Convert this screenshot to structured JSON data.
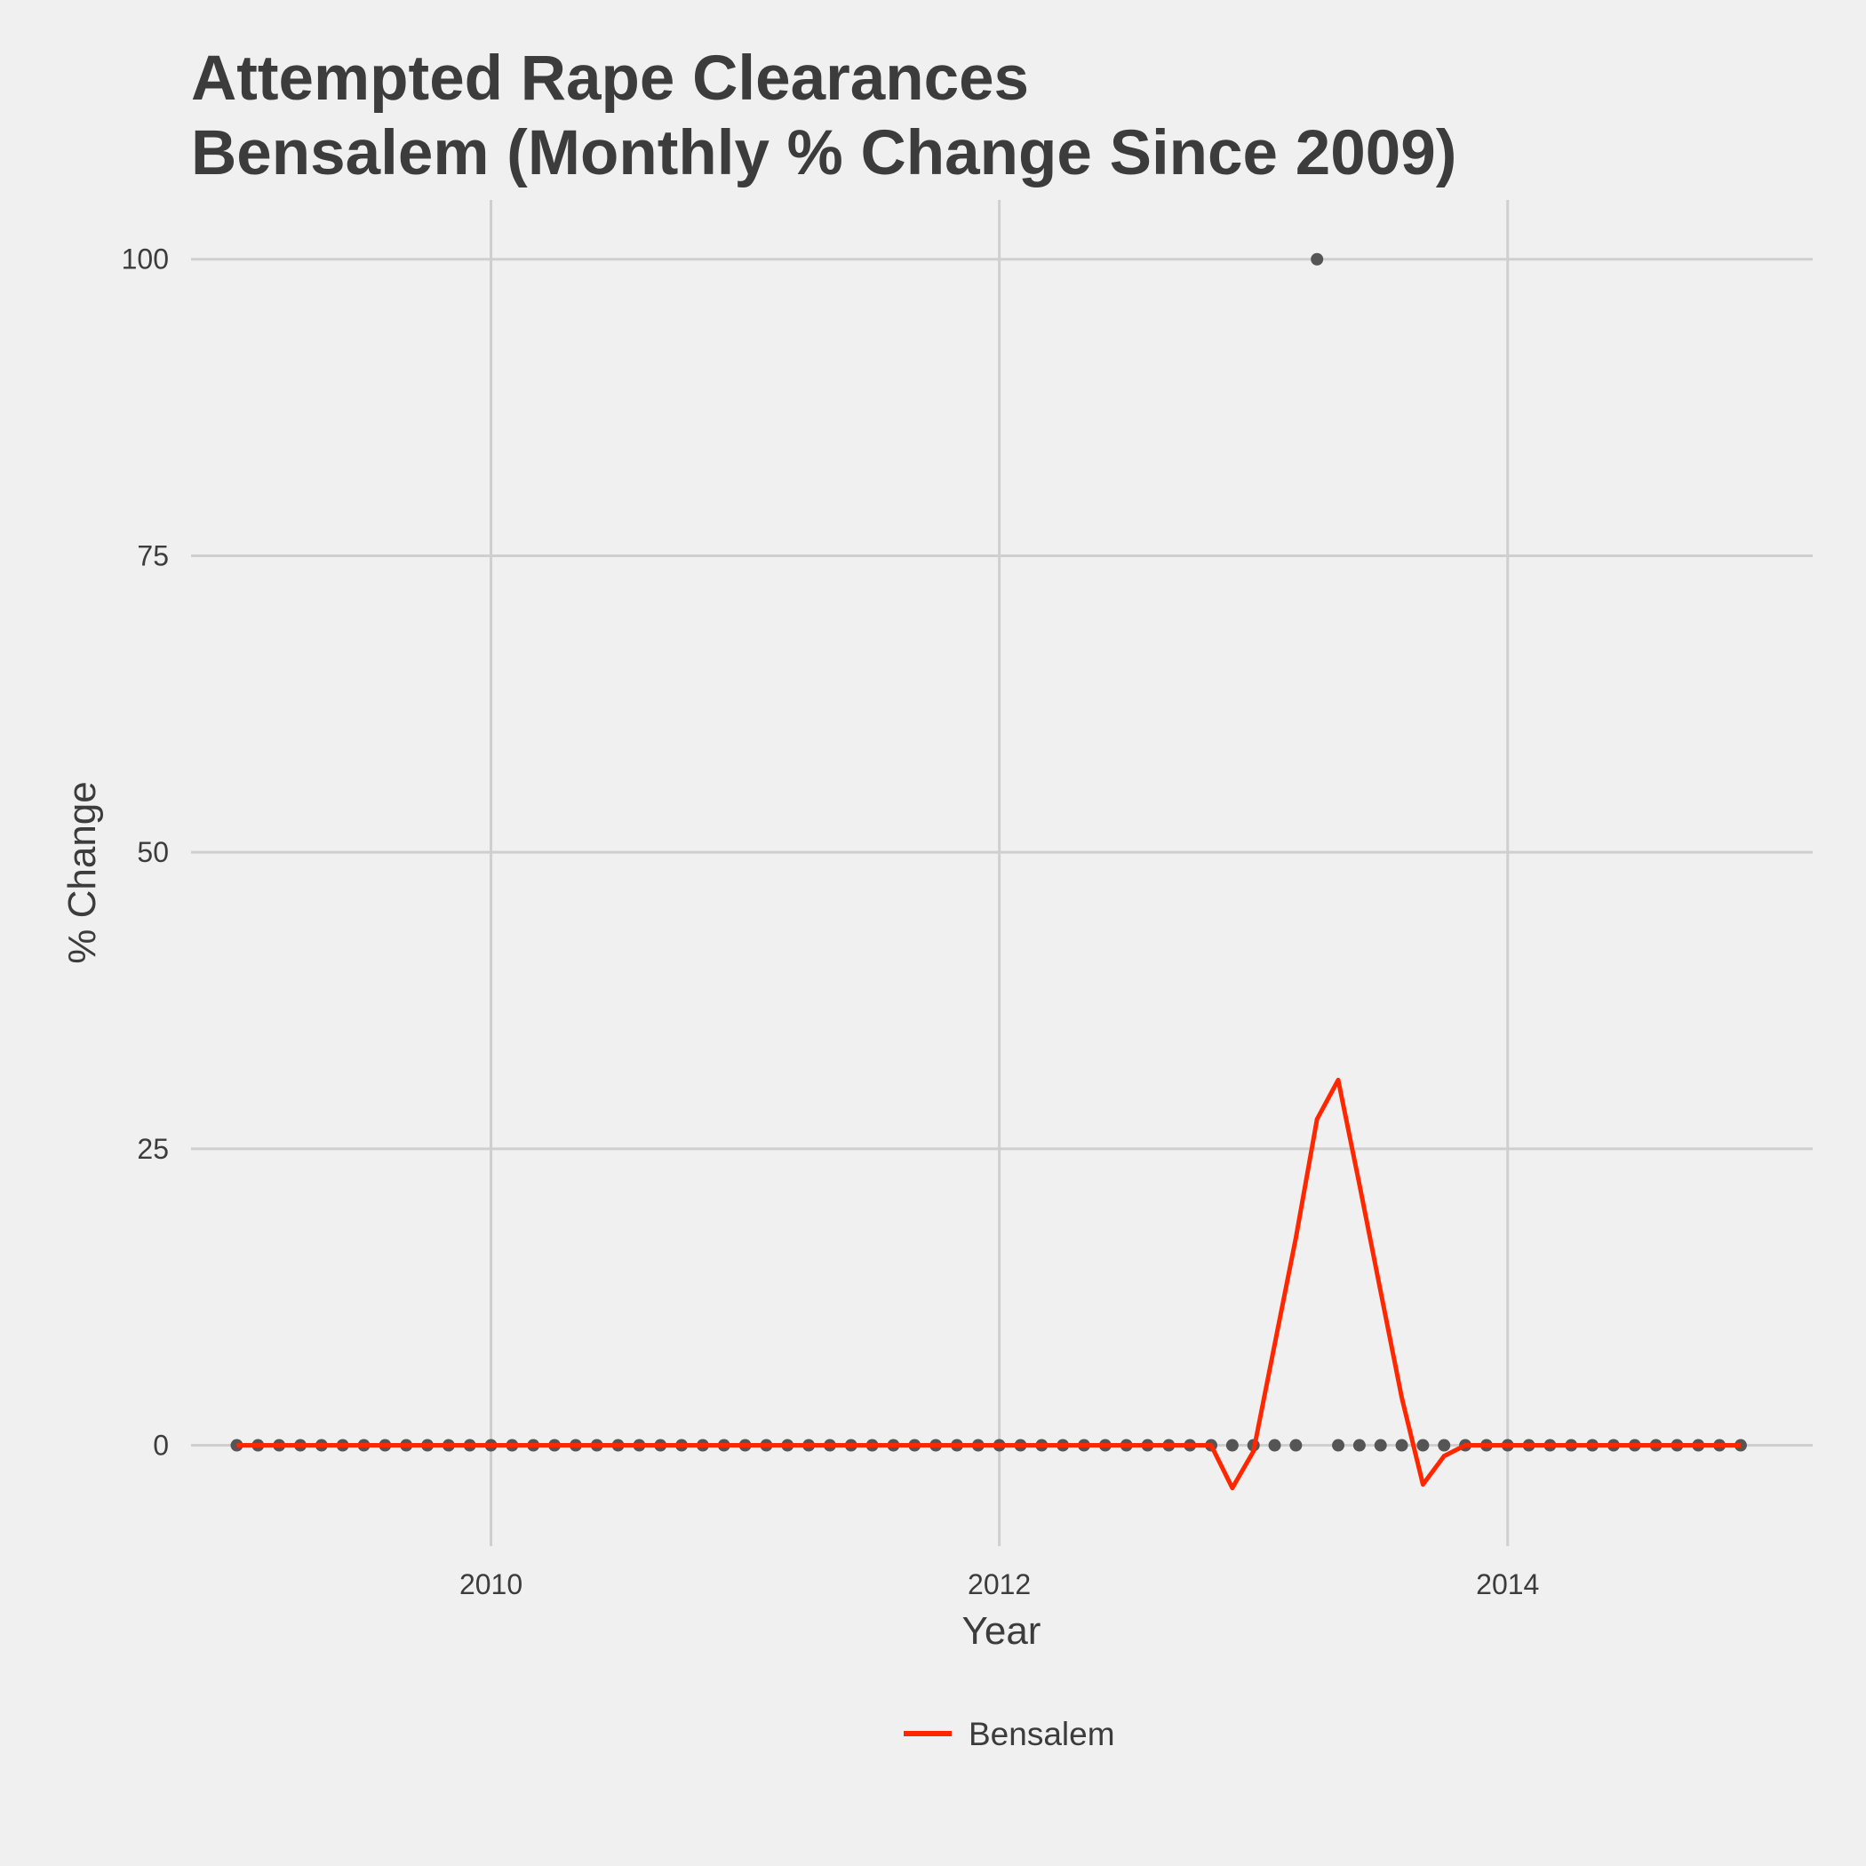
{
  "chart_data": {
    "type": "line",
    "title_lines": [
      "Attempted Rape Clearances",
      "Bensalem (Monthly % Change Since 2009)"
    ],
    "xlabel": "Year",
    "ylabel": "% Change",
    "x_ticks": [
      2010,
      2012,
      2014
    ],
    "y_ticks": [
      0,
      25,
      50,
      75,
      100
    ],
    "xlim": [
      2008.82,
      2015.2
    ],
    "ylim": [
      -8.5,
      105
    ],
    "grid": true,
    "legend_position": "bottom",
    "series": [
      {
        "name": "Bensalem",
        "kind": "line",
        "color": "#ff2700",
        "x": [
          "2009-01",
          "2009-02",
          "2009-03",
          "2009-04",
          "2009-05",
          "2009-06",
          "2009-07",
          "2009-08",
          "2009-09",
          "2009-10",
          "2009-11",
          "2009-12",
          "2010-01",
          "2010-02",
          "2010-03",
          "2010-04",
          "2010-05",
          "2010-06",
          "2010-07",
          "2010-08",
          "2010-09",
          "2010-10",
          "2010-11",
          "2010-12",
          "2011-01",
          "2011-02",
          "2011-03",
          "2011-04",
          "2011-05",
          "2011-06",
          "2011-07",
          "2011-08",
          "2011-09",
          "2011-10",
          "2011-11",
          "2011-12",
          "2012-01",
          "2012-02",
          "2012-03",
          "2012-04",
          "2012-05",
          "2012-06",
          "2012-07",
          "2012-08",
          "2012-09",
          "2012-10",
          "2012-11",
          "2012-12",
          "2013-01",
          "2013-02",
          "2013-03",
          "2013-04",
          "2013-05",
          "2013-06",
          "2013-07",
          "2013-08",
          "2013-09",
          "2013-10",
          "2013-11",
          "2013-12",
          "2014-01",
          "2014-02",
          "2014-03",
          "2014-04",
          "2014-05",
          "2014-06",
          "2014-07",
          "2014-08",
          "2014-09",
          "2014-10",
          "2014-11",
          "2014-12"
        ],
        "y": [
          0,
          0,
          0,
          0,
          0,
          0,
          0,
          0,
          0,
          0,
          0,
          0,
          0,
          0,
          0,
          0,
          0,
          0,
          0,
          0,
          0,
          0,
          0,
          0,
          0,
          0,
          0,
          0,
          0,
          0,
          0,
          0,
          0,
          0,
          0,
          0,
          0,
          0,
          0,
          0,
          0,
          0,
          0,
          0,
          0,
          0,
          0,
          -3.6,
          -0.5,
          8.5,
          17.5,
          27.5,
          30.8,
          22,
          13,
          4,
          -3.3,
          -0.9,
          0,
          0,
          0,
          0,
          0,
          0,
          0,
          0,
          0,
          0,
          0,
          0,
          0,
          0
        ]
      },
      {
        "name": "",
        "kind": "points",
        "color": "#555555",
        "x": [
          "2009-01",
          "2009-02",
          "2009-03",
          "2009-04",
          "2009-05",
          "2009-06",
          "2009-07",
          "2009-08",
          "2009-09",
          "2009-10",
          "2009-11",
          "2009-12",
          "2010-01",
          "2010-02",
          "2010-03",
          "2010-04",
          "2010-05",
          "2010-06",
          "2010-07",
          "2010-08",
          "2010-09",
          "2010-10",
          "2010-11",
          "2010-12",
          "2011-01",
          "2011-02",
          "2011-03",
          "2011-04",
          "2011-05",
          "2011-06",
          "2011-07",
          "2011-08",
          "2011-09",
          "2011-10",
          "2011-11",
          "2011-12",
          "2012-01",
          "2012-02",
          "2012-03",
          "2012-04",
          "2012-05",
          "2012-06",
          "2012-07",
          "2012-08",
          "2012-09",
          "2012-10",
          "2012-11",
          "2012-12",
          "2013-01",
          "2013-02",
          "2013-03",
          "2013-04",
          "2013-05",
          "2013-06",
          "2013-07",
          "2013-08",
          "2013-09",
          "2013-10",
          "2013-11",
          "2013-12",
          "2014-01",
          "2014-02",
          "2014-03",
          "2014-04",
          "2014-05",
          "2014-06",
          "2014-07",
          "2014-08",
          "2014-09",
          "2014-10",
          "2014-11",
          "2014-12"
        ],
        "y": [
          0,
          0,
          0,
          0,
          0,
          0,
          0,
          0,
          0,
          0,
          0,
          0,
          0,
          0,
          0,
          0,
          0,
          0,
          0,
          0,
          0,
          0,
          0,
          0,
          0,
          0,
          0,
          0,
          0,
          0,
          0,
          0,
          0,
          0,
          0,
          0,
          0,
          0,
          0,
          0,
          0,
          0,
          0,
          0,
          0,
          0,
          0,
          0,
          0,
          0,
          0,
          100,
          0,
          0,
          0,
          0,
          0,
          0,
          0,
          0,
          0,
          0,
          0,
          0,
          0,
          0,
          0,
          0,
          0,
          0,
          0,
          0
        ]
      }
    ]
  }
}
